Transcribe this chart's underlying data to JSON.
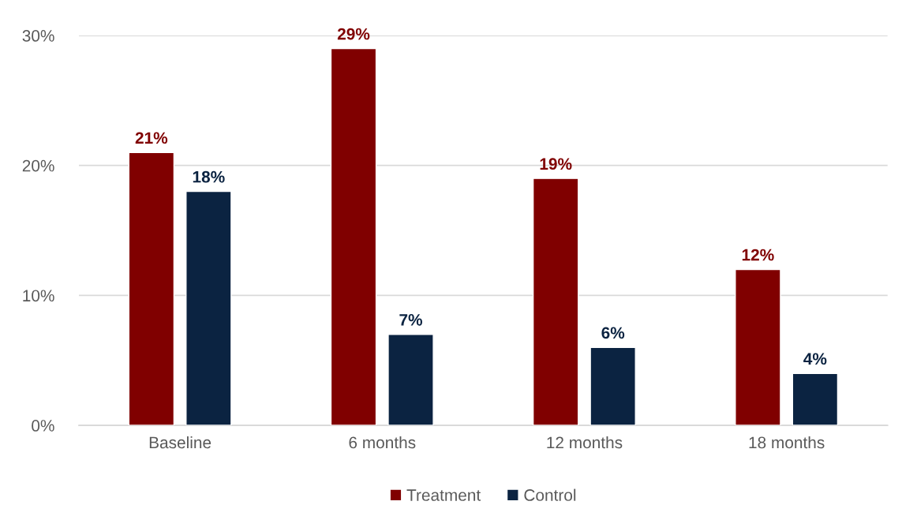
{
  "chart_data": {
    "type": "bar",
    "categories": [
      "Baseline",
      "6 months",
      "12 months",
      "18 months"
    ],
    "series": [
      {
        "name": "Treatment",
        "color": "#800000",
        "values": [
          21,
          29,
          19,
          12
        ],
        "value_labels": [
          "21%",
          "29%",
          "19%",
          "12%"
        ]
      },
      {
        "name": "Control",
        "color": "#0b2341",
        "values": [
          18,
          7,
          6,
          4
        ],
        "value_labels": [
          "18%",
          "7%",
          "6%",
          "4%"
        ]
      }
    ],
    "ylim": [
      0,
      30
    ],
    "yticks": [
      {
        "value": 0,
        "label": "0%"
      },
      {
        "value": 10,
        "label": "10%"
      },
      {
        "value": 20,
        "label": "20%"
      },
      {
        "value": 30,
        "label": "30%"
      }
    ],
    "grid": "y",
    "legend": "bottom"
  }
}
